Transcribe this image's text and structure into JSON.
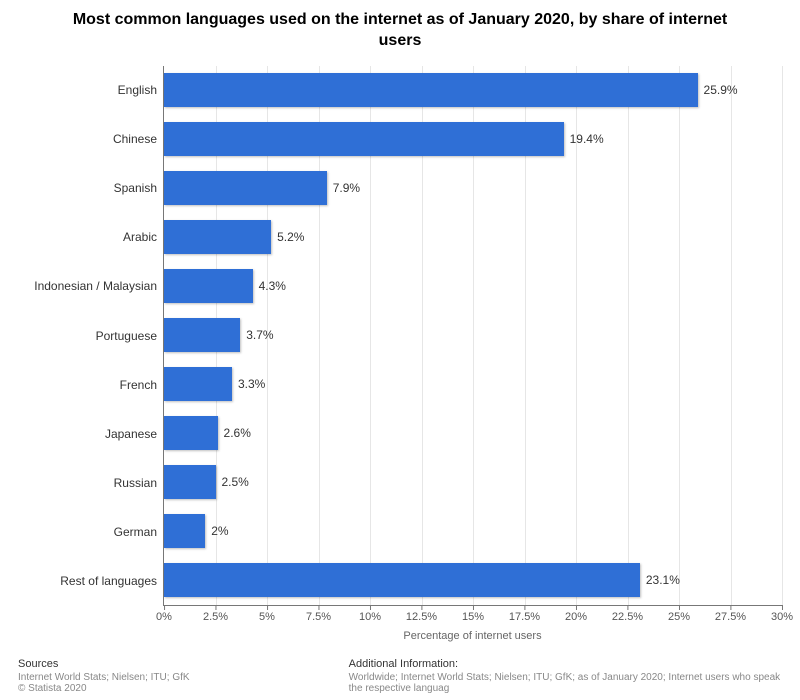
{
  "chart": {
    "type": "bar-horizontal",
    "title": "Most common languages used on the internet as of January 2020, by share of internet users",
    "x_axis_label": "Percentage of internet users",
    "x_max": 30,
    "x_tick_step": 2.5,
    "x_tick_suffix": "%",
    "bar_color": "#2f6fd6",
    "grid_color": "#e6e6e6",
    "axis_color": "#777777",
    "background_color": "#ffffff",
    "label_fontsize": 12,
    "tick_fontsize": 11,
    "title_fontsize": 16,
    "data": [
      {
        "label": "English",
        "value": 25.9,
        "value_label": "25.9%"
      },
      {
        "label": "Chinese",
        "value": 19.4,
        "value_label": "19.4%"
      },
      {
        "label": "Spanish",
        "value": 7.9,
        "value_label": "7.9%"
      },
      {
        "label": "Arabic",
        "value": 5.2,
        "value_label": "5.2%"
      },
      {
        "label": "Indonesian / Malaysian",
        "value": 4.3,
        "value_label": "4.3%"
      },
      {
        "label": "Portuguese",
        "value": 3.7,
        "value_label": "3.7%"
      },
      {
        "label": "French",
        "value": 3.3,
        "value_label": "3.3%"
      },
      {
        "label": "Japanese",
        "value": 2.6,
        "value_label": "2.6%"
      },
      {
        "label": "Russian",
        "value": 2.5,
        "value_label": "2.5%"
      },
      {
        "label": "German",
        "value": 2,
        "value_label": "2%"
      },
      {
        "label": "Rest of languages",
        "value": 23.1,
        "value_label": "23.1%"
      }
    ]
  },
  "footer": {
    "sources_heading": "Sources",
    "sources_text": "Internet World Stats; Nielsen; ITU; GfK",
    "copyright": "© Statista 2020",
    "additional_heading": "Additional Information:",
    "additional_text": "Worldwide; Internet World Stats; Nielsen; ITU; GfK; as of January 2020; Internet users who speak the respective languag"
  }
}
